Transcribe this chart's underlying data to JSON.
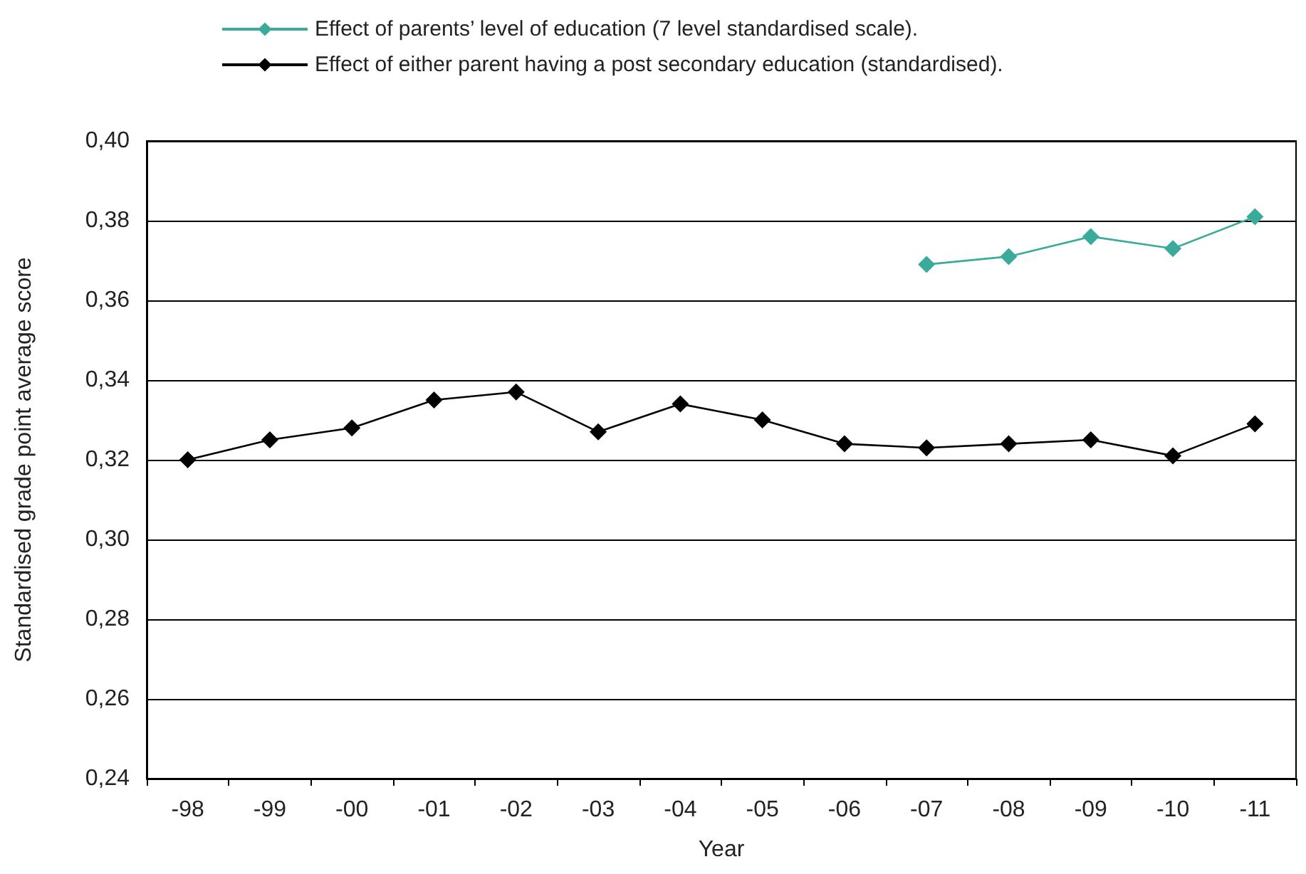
{
  "chart_data": {
    "type": "line",
    "xlabel": "Year",
    "ylabel": "Standardised grade point average score",
    "categories": [
      "-98",
      "-99",
      "-00",
      "-01",
      "-02",
      "-03",
      "-04",
      "-05",
      "-06",
      "-07",
      "-08",
      "-09",
      "-10",
      "-11"
    ],
    "series": [
      {
        "name": "Effect of parents’ level of education (7 level standardised scale).",
        "color": "#3aab9a",
        "values": [
          null,
          null,
          null,
          null,
          null,
          null,
          null,
          null,
          null,
          0.369,
          0.371,
          0.376,
          0.373,
          0.381
        ]
      },
      {
        "name": "Effect of either parent having a post secondary education (standardised).",
        "color": "#000000",
        "values": [
          0.32,
          0.325,
          0.328,
          0.335,
          0.337,
          0.327,
          0.334,
          0.33,
          0.324,
          0.323,
          0.324,
          0.325,
          0.321,
          0.329
        ]
      }
    ],
    "ylim": [
      0.24,
      0.4
    ],
    "yticks": [
      {
        "value": 0.24,
        "label": "0,24"
      },
      {
        "value": 0.26,
        "label": "0,26"
      },
      {
        "value": 0.28,
        "label": "0,28"
      },
      {
        "value": 0.3,
        "label": "0,30"
      },
      {
        "value": 0.32,
        "label": "0,32"
      },
      {
        "value": 0.34,
        "label": "0,34"
      },
      {
        "value": 0.36,
        "label": "0,36"
      },
      {
        "value": 0.38,
        "label": "0,38"
      },
      {
        "value": 0.4,
        "label": "0,40"
      }
    ],
    "grid": "y",
    "legend": "top",
    "marker": "diamond",
    "line_style": "solid"
  }
}
